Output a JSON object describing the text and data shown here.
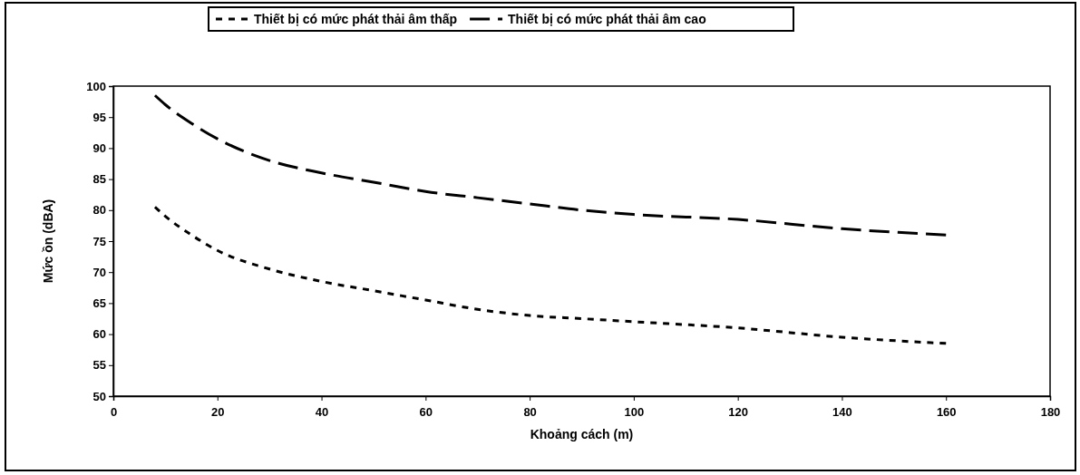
{
  "chart_data": {
    "type": "line",
    "xlabel": "Khoảng cách (m)",
    "ylabel": "Mức ồn (dBA)",
    "xlim": [
      0,
      180
    ],
    "xticks": [
      0,
      20,
      40,
      60,
      80,
      100,
      120,
      140,
      160,
      180
    ],
    "ylim": [
      50,
      100
    ],
    "yticks": [
      50,
      55,
      60,
      65,
      70,
      75,
      80,
      85,
      90,
      95,
      100
    ],
    "grid": false,
    "legend": "top",
    "marker": "none",
    "series": [
      {
        "name": "Thiết bị có mức phát thải âm thấp",
        "color": "#000000",
        "line_style": "dotted",
        "x": [
          8,
          10,
          15,
          20,
          30,
          40,
          50,
          60,
          70,
          80,
          90,
          100,
          120,
          140,
          160
        ],
        "values": [
          80.5,
          79,
          76,
          73.5,
          70.5,
          68.5,
          67,
          65.5,
          64,
          63,
          62.5,
          62,
          61,
          59.5,
          58.5
        ]
      },
      {
        "name": "Thiết bị có mức phát thải âm cao",
        "color": "#000000",
        "line_style": "dashed",
        "x": [
          8,
          10,
          15,
          20,
          30,
          40,
          50,
          60,
          70,
          80,
          90,
          100,
          120,
          140,
          160
        ],
        "values": [
          98.5,
          97,
          94,
          91.5,
          88,
          86,
          84.5,
          83,
          82,
          81,
          80,
          79.3,
          78.5,
          77,
          76
        ]
      }
    ]
  }
}
